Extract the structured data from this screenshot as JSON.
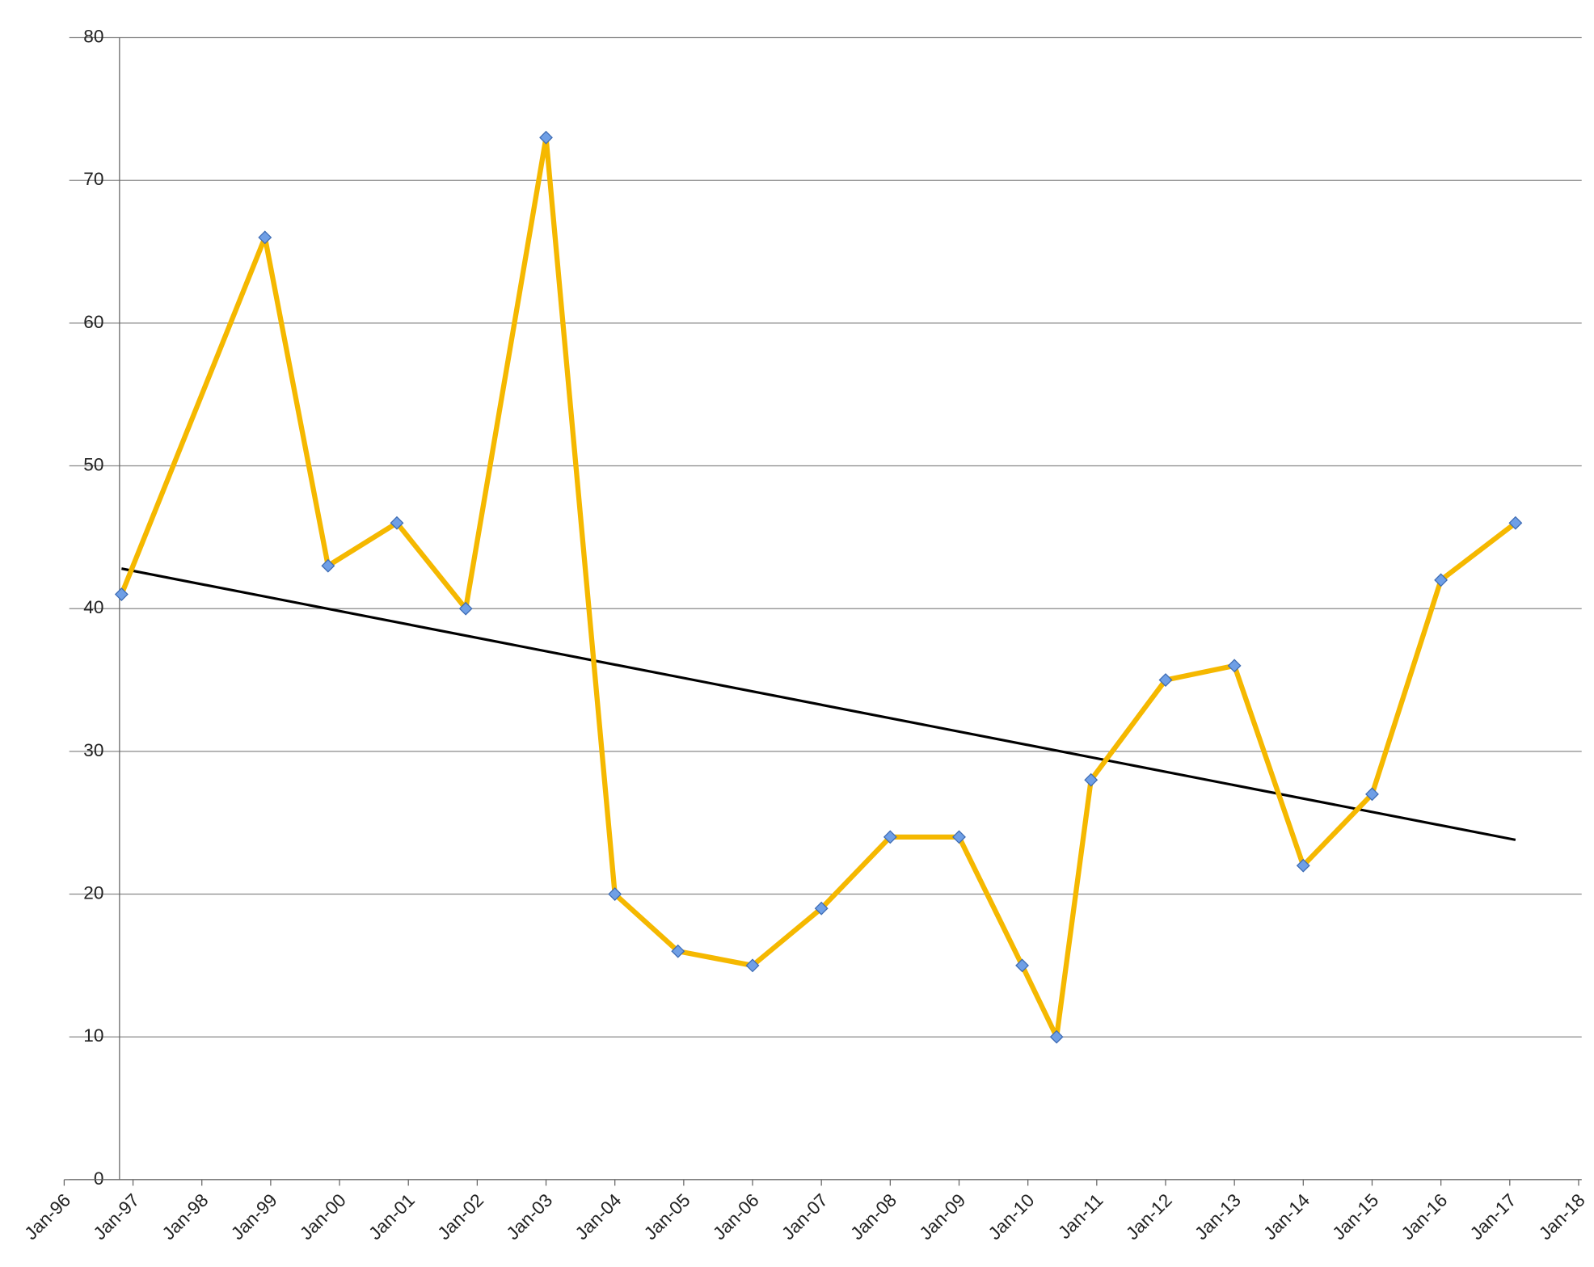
{
  "chart_data": {
    "type": "line",
    "x": [
      "1996-11",
      "1998-12",
      "1999-11",
      "2000-11",
      "2001-11",
      "2003-01",
      "2004-01",
      "2004-12",
      "2006-01",
      "2007-01",
      "2008-01",
      "2009-01",
      "2009-12",
      "2010-06",
      "2010-12",
      "2012-01",
      "2013-01",
      "2014-01",
      "2015-01",
      "2016-01",
      "2017-02"
    ],
    "series": [
      {
        "color": "#f5b800",
        "marker_color": "#6f9fe6",
        "values": [
          41,
          66,
          43,
          46,
          40,
          73,
          20,
          16,
          15,
          19,
          24,
          24,
          15,
          10,
          28,
          35,
          36,
          22,
          27,
          42,
          46
        ]
      }
    ],
    "trendline": {
      "x": [
        "1996-11",
        "2017-02"
      ],
      "values": [
        42.8,
        23.8
      ],
      "color": "#000000"
    },
    "xlim": [
      "1996-01",
      "2018-01"
    ],
    "xticks": [
      {
        "value": "1996-01",
        "label": "Jan-96"
      },
      {
        "value": "1997-01",
        "label": "Jan-97"
      },
      {
        "value": "1998-01",
        "label": "Jan-98"
      },
      {
        "value": "1999-01",
        "label": "Jan-99"
      },
      {
        "value": "2000-01",
        "label": "Jan-00"
      },
      {
        "value": "2001-01",
        "label": "Jan-01"
      },
      {
        "value": "2002-01",
        "label": "Jan-02"
      },
      {
        "value": "2003-01",
        "label": "Jan-03"
      },
      {
        "value": "2004-01",
        "label": "Jan-04"
      },
      {
        "value": "2005-01",
        "label": "Jan-05"
      },
      {
        "value": "2006-01",
        "label": "Jan-06"
      },
      {
        "value": "2007-01",
        "label": "Jan-07"
      },
      {
        "value": "2008-01",
        "label": "Jan-08"
      },
      {
        "value": "2009-01",
        "label": "Jan-09"
      },
      {
        "value": "2010-01",
        "label": "Jan-10"
      },
      {
        "value": "2011-01",
        "label": "Jan-11"
      },
      {
        "value": "2012-01",
        "label": "Jan-12"
      },
      {
        "value": "2013-01",
        "label": "Jan-13"
      },
      {
        "value": "2014-01",
        "label": "Jan-14"
      },
      {
        "value": "2015-01",
        "label": "Jan-15"
      },
      {
        "value": "2016-01",
        "label": "Jan-16"
      },
      {
        "value": "2017-01",
        "label": "Jan-17"
      },
      {
        "value": "2018-01",
        "label": "Jan-18"
      }
    ],
    "ylim": [
      0,
      80
    ],
    "yticks": [
      0,
      10,
      20,
      30,
      40,
      50,
      60,
      70,
      80
    ],
    "grid": true
  }
}
